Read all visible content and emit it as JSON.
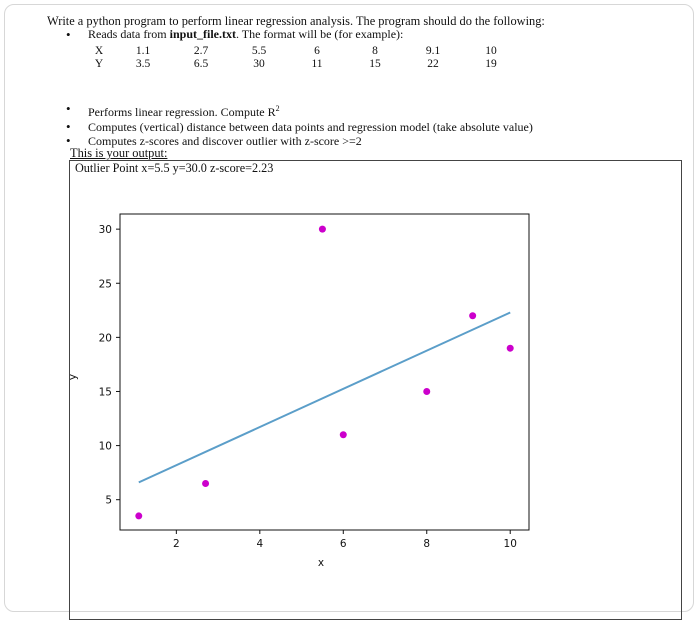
{
  "intro": {
    "before": "Write a python program to perform linear regression analysis. The program should do the following:"
  },
  "bullets_top": {
    "reads_prefix": "Reads data from ",
    "reads_file": "input_file.txt",
    "reads_suffix": ". The format will be (for example):"
  },
  "data_table": {
    "x_label": "X",
    "y_label": "Y",
    "x_values": [
      "1.1",
      "2.7",
      "5.5",
      "6",
      "8",
      "9.1",
      "10"
    ],
    "y_values": [
      "3.5",
      "6.5",
      "30",
      "11",
      "15",
      "22",
      "19"
    ]
  },
  "bullets_bottom": [
    {
      "text": "Performs linear regression. Compute R",
      "sup": "2"
    },
    {
      "text": "Computes (vertical) distance between data points and regression model (take absolute value)",
      "sup": ""
    },
    {
      "text": "Computes z-scores and discover outlier with z-score >=2",
      "sup": ""
    }
  ],
  "output": {
    "caption": "This is your output:",
    "outlier_line": "Outlier Point x=5.5  y=30.0  z-score=2.23"
  },
  "colors": {
    "points": "#cc00cc",
    "regression_line": "#5b9ec9"
  },
  "chart_data": {
    "type": "scatter",
    "xlabel": "x",
    "ylabel": "y",
    "xlim": [
      0.65,
      10.45
    ],
    "ylim": [
      2.2,
      31.4
    ],
    "x_ticks": [
      2,
      4,
      6,
      8,
      10
    ],
    "y_ticks": [
      5,
      10,
      15,
      20,
      25,
      30
    ],
    "grid": false,
    "points": [
      {
        "x": 1.1,
        "y": 3.5
      },
      {
        "x": 2.7,
        "y": 6.5
      },
      {
        "x": 5.5,
        "y": 30
      },
      {
        "x": 6,
        "y": 11
      },
      {
        "x": 8,
        "y": 15
      },
      {
        "x": 9.1,
        "y": 22
      },
      {
        "x": 10,
        "y": 19
      }
    ],
    "regression_line": {
      "x": [
        1.1,
        10
      ],
      "y": [
        6.6,
        22.3
      ]
    }
  }
}
